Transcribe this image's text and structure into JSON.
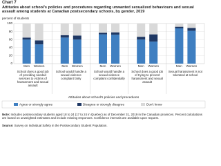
{
  "chart_data": {
    "type": "stacked-bar",
    "chart_number": "Chart 7",
    "title": "Attitudes about school's policies and procedures regarding unwanted sexualized behaviours and sexual assault among students at Canadian postsecondary schools, by gender, 2019",
    "y_label": "percent of students",
    "x_label": "Attitudes about school's policies and procedures",
    "groups": [
      "School does a good job of providing needed services to victims of harassment and sexual assault",
      "School would handle a sexual violence complaint fairly",
      "School would handle a sexual violence complaint confidentially",
      "School does a good job of trying to prevent harassment and sexual assault",
      "Sexual harassment is not tolerated at school"
    ],
    "categories": [
      "Men",
      "Women",
      "Men",
      "Women",
      "Men",
      "Women",
      "Men",
      "Women",
      "Men",
      "Women"
    ],
    "series": [
      {
        "name": "Agree or strongly agree",
        "color": "#3f7fc1",
        "values": [
          60,
          48,
          65,
          60,
          73,
          72,
          60,
          55,
          88,
          82
        ]
      },
      {
        "name": "Disagree or strongly disagree",
        "color": "#1f3864",
        "values": [
          5,
          10,
          6,
          10,
          4,
          6,
          7,
          18,
          4,
          7
        ]
      },
      {
        "name": "Don't know",
        "color": "#d9d9d9",
        "values": [
          35,
          42,
          29,
          30,
          23,
          22,
          33,
          27,
          8,
          11
        ]
      }
    ],
    "ylim": [
      0,
      100
    ],
    "yticks": [
      0,
      20,
      40,
      60,
      80,
      100
    ],
    "grid": true,
    "note_label": "Note:",
    "note": "Includes postsecondary students aged 18 to 24 (17 to 24 in Quebec) as of December 31, 2019 in the Canadian provinces. Percent calculations are based on unweighted estimates and include missing responses. Confidence intervals are available upon request.",
    "source_label": "Source:",
    "source": "Survey on Individual Safety in the Postsecondary Student Population."
  }
}
